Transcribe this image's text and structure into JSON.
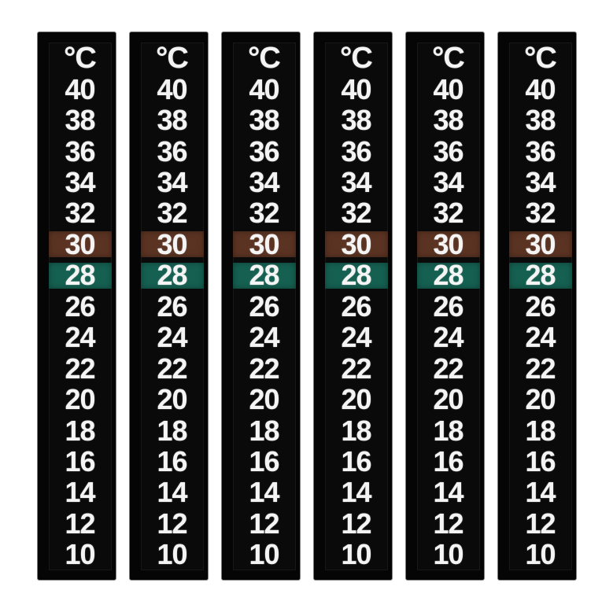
{
  "page_bg": "#ffffff",
  "strip_count": 6,
  "strip": {
    "header": "°C",
    "rows": [
      {
        "value": "40",
        "highlight": "none"
      },
      {
        "value": "38",
        "highlight": "none"
      },
      {
        "value": "36",
        "highlight": "none"
      },
      {
        "value": "34",
        "highlight": "none"
      },
      {
        "value": "32",
        "highlight": "none"
      },
      {
        "value": "30",
        "highlight": "brown"
      },
      {
        "value": "28",
        "highlight": "teal"
      },
      {
        "value": "26",
        "highlight": "none"
      },
      {
        "value": "24",
        "highlight": "none"
      },
      {
        "value": "22",
        "highlight": "none"
      },
      {
        "value": "20",
        "highlight": "none"
      },
      {
        "value": "18",
        "highlight": "none"
      },
      {
        "value": "16",
        "highlight": "none"
      },
      {
        "value": "14",
        "highlight": "none"
      },
      {
        "value": "12",
        "highlight": "none"
      },
      {
        "value": "10",
        "highlight": "none"
      }
    ]
  },
  "colors": {
    "strip_bg": "#050505",
    "panel_bg": "#0a0a0a",
    "text": "#f4f4f4",
    "highlight_brown": "#5b3322",
    "highlight_teal": "#156051"
  }
}
